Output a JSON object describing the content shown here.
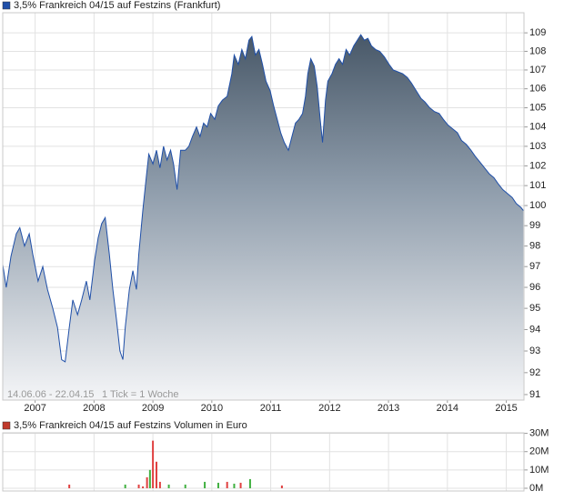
{
  "chart_data": [
    {
      "type": "area",
      "series": [
        {
          "name": "3,5% Frankreich 04/15 auf Festzins (Frankfurt)",
          "color": "#1f4fa8",
          "x": [
            2006.45,
            2006.51,
            2006.59,
            2006.68,
            2006.74,
            2006.82,
            2006.9,
            2006.96,
            2007.05,
            2007.13,
            2007.21,
            2007.3,
            2007.38,
            2007.45,
            2007.51,
            2007.58,
            2007.64,
            2007.72,
            2007.79,
            2007.87,
            2007.93,
            2008.01,
            2008.07,
            2008.13,
            2008.19,
            2008.26,
            2008.32,
            2008.38,
            2008.44,
            2008.49,
            2008.53,
            2008.6,
            2008.66,
            2008.72,
            2008.76,
            2008.83,
            2008.89,
            2008.93,
            2009.0,
            2009.06,
            2009.12,
            2009.18,
            2009.24,
            2009.3,
            2009.35,
            2009.41,
            2009.47,
            2009.55,
            2009.61,
            2009.67,
            2009.74,
            2009.8,
            2009.86,
            2009.92,
            2009.98,
            2010.05,
            2010.11,
            2010.18,
            2010.26,
            2010.34,
            2010.38,
            2010.45,
            2010.51,
            2010.57,
            2010.63,
            2010.68,
            2010.74,
            2010.8,
            2010.86,
            2010.92,
            2010.99,
            2011.05,
            2011.11,
            2011.17,
            2011.23,
            2011.3,
            2011.36,
            2011.42,
            2011.48,
            2011.54,
            2011.59,
            2011.63,
            2011.68,
            2011.74,
            2011.79,
            2011.84,
            2011.88,
            2011.93,
            2011.97,
            2012.04,
            2012.1,
            2012.16,
            2012.22,
            2012.28,
            2012.34,
            2012.41,
            2012.47,
            2012.53,
            2012.59,
            2012.65,
            2012.71,
            2012.78,
            2012.85,
            2012.93,
            2013.01,
            2013.08,
            2013.16,
            2013.24,
            2013.32,
            2013.39,
            2013.47,
            2013.55,
            2013.62,
            2013.7,
            2013.78,
            2013.86,
            2013.93,
            2014.01,
            2014.09,
            2014.17,
            2014.24,
            2014.32,
            2014.4,
            2014.47,
            2014.55,
            2014.63,
            2014.71,
            2014.79,
            2014.86,
            2014.94,
            2015.02,
            2015.1,
            2015.17,
            2015.25,
            2015.29
          ],
          "values": [
            97.1,
            96.0,
            97.5,
            98.6,
            98.9,
            98.0,
            98.6,
            97.6,
            96.3,
            97.0,
            95.9,
            95.0,
            94.1,
            92.6,
            92.5,
            94.1,
            95.4,
            94.7,
            95.4,
            96.3,
            95.4,
            97.3,
            98.4,
            99.1,
            99.4,
            97.6,
            95.9,
            94.5,
            93.0,
            92.6,
            94.1,
            95.9,
            96.8,
            95.9,
            97.6,
            99.8,
            101.5,
            102.6,
            102.1,
            102.8,
            101.9,
            103.0,
            102.3,
            102.8,
            102.1,
            100.8,
            102.8,
            102.8,
            103.0,
            103.5,
            104.0,
            103.5,
            104.2,
            104.0,
            104.7,
            104.4,
            105.1,
            105.4,
            105.6,
            106.8,
            107.8,
            107.3,
            108.1,
            107.6,
            108.6,
            108.8,
            107.8,
            108.1,
            107.3,
            106.4,
            105.9,
            105.1,
            104.4,
            103.7,
            103.2,
            102.8,
            103.5,
            104.2,
            104.4,
            104.7,
            105.6,
            106.8,
            107.6,
            107.2,
            106.1,
            104.4,
            103.2,
            105.4,
            106.4,
            106.8,
            107.3,
            107.6,
            107.3,
            108.1,
            107.8,
            108.3,
            108.6,
            108.9,
            108.6,
            108.7,
            108.3,
            108.1,
            108.0,
            107.7,
            107.3,
            107.0,
            106.9,
            106.8,
            106.6,
            106.3,
            105.9,
            105.5,
            105.3,
            105.0,
            104.8,
            104.7,
            104.4,
            104.1,
            103.9,
            103.7,
            103.3,
            103.1,
            102.8,
            102.5,
            102.2,
            101.9,
            101.6,
            101.4,
            101.1,
            100.8,
            100.6,
            100.4,
            100.1,
            99.9,
            99.75
          ]
        }
      ],
      "xlim": [
        2006.45,
        2015.3
      ],
      "xticks": [
        2007,
        2008,
        2009,
        2010,
        2011,
        2012,
        2013,
        2014,
        2015
      ],
      "ylim": [
        90.75,
        110.1
      ],
      "log": true,
      "yticks": [
        91,
        92,
        93,
        94,
        95,
        96,
        97,
        98,
        99,
        100,
        101,
        102,
        103,
        104,
        105,
        106,
        107,
        108,
        109
      ],
      "grid": true,
      "annotations": [
        "14.06.06 - 22.04.15",
        "1 Tick = 1 Woche"
      ]
    },
    {
      "type": "bar",
      "series": [
        {
          "name": "3,5% Frankreich 04/15 auf Festzins Volumen in Euro",
          "color": "#c0392b",
          "x": [
            2007.58,
            2008.53,
            2008.76,
            2008.83,
            2008.9,
            2008.95,
            2009.0,
            2009.06,
            2009.12,
            2009.27,
            2009.55,
            2009.88,
            2010.11,
            2010.26,
            2010.38,
            2010.49,
            2010.65,
            2011.19
          ],
          "values": [
            2000000,
            2000000,
            2000000,
            1000000,
            6000000,
            10000000,
            26000000,
            14500000,
            3500000,
            2000000,
            2000000,
            3500000,
            3000000,
            3500000,
            2500000,
            3000000,
            5000000,
            1500000
          ],
          "bar_colors": [
            "#e04040",
            "#40b040",
            "#e04040",
            "#e04040",
            "#e04040",
            "#40b040",
            "#e04040",
            "#e04040",
            "#e04040",
            "#40b040",
            "#40b040",
            "#40b040",
            "#40b040",
            "#e04040",
            "#40b040",
            "#e04040",
            "#40b040",
            "#e04040"
          ]
        }
      ],
      "xlim": [
        2006.45,
        2015.3
      ],
      "ylim": [
        -1500000,
        30300000
      ],
      "yticks": [
        {
          "value": 0,
          "label": "0M"
        },
        {
          "value": 10000000,
          "label": "10M"
        },
        {
          "value": 20000000,
          "label": "20M"
        },
        {
          "value": 30000000,
          "label": "30M"
        }
      ],
      "grid": true
    }
  ]
}
